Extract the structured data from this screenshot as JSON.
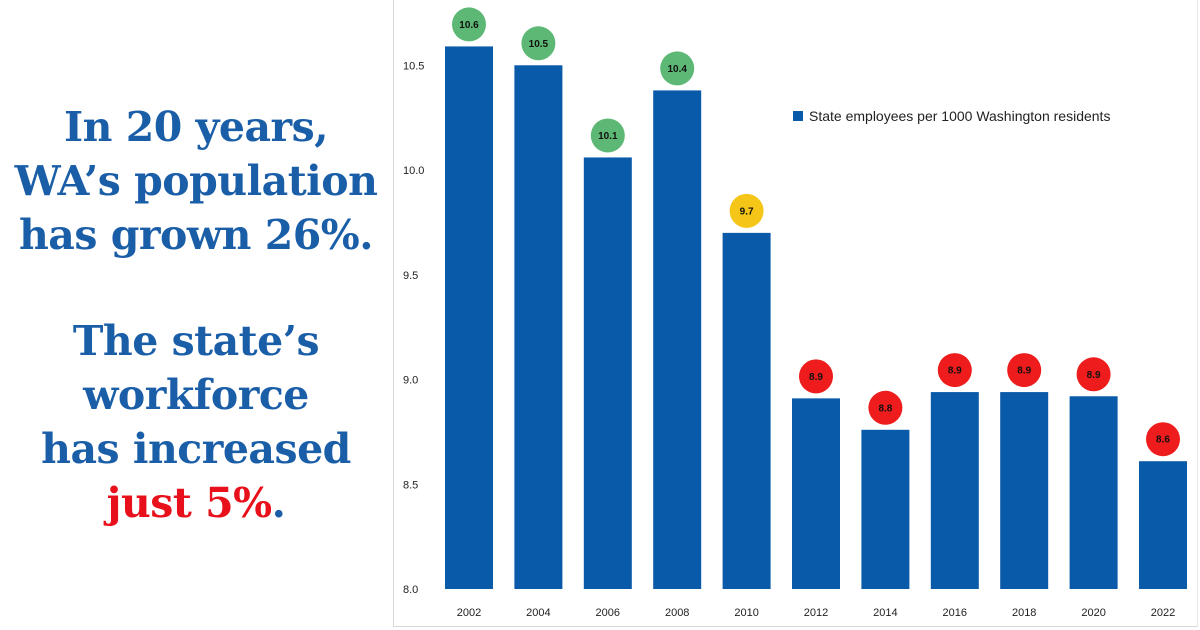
{
  "headline": {
    "line1": "In 20 years,",
    "line2": "WA’s population",
    "line3": "has grown 26%.",
    "line4": "The state’s",
    "line5": "workforce",
    "line6": "has increased",
    "line7_accent": "just 5%",
    "line7_end": "."
  },
  "colors": {
    "headline": "#1a5ea8",
    "accent": "#e8101a",
    "bar": "#0a5aaa",
    "badge_green": "#5cb874",
    "badge_yellow": "#f5c518",
    "badge_red": "#ee1c1c"
  },
  "chart_data": {
    "type": "bar",
    "categories": [
      "2002",
      "2004",
      "2006",
      "2008",
      "2010",
      "2012",
      "2014",
      "2016",
      "2018",
      "2020",
      "2022"
    ],
    "series": [
      {
        "name": "State employees per 1000 Washington residents",
        "values": [
          10.59,
          10.5,
          10.06,
          10.38,
          9.7,
          8.91,
          8.76,
          8.94,
          8.94,
          8.92,
          8.61
        ]
      }
    ],
    "data_labels": [
      "10.6",
      "10.5",
      "10.1",
      "10.4",
      "9.7",
      "8.9",
      "8.8",
      "8.9",
      "8.9",
      "8.9",
      "8.6"
    ],
    "label_colors": [
      "green",
      "green",
      "green",
      "green",
      "yellow",
      "red",
      "red",
      "red",
      "red",
      "red",
      "red"
    ],
    "yticks": [
      "8.0",
      "8.5",
      "9.0",
      "9.5",
      "10.0",
      "10.5"
    ],
    "ylim": [
      8.0,
      10.74
    ],
    "legend_position": "top-right",
    "grid": false
  }
}
